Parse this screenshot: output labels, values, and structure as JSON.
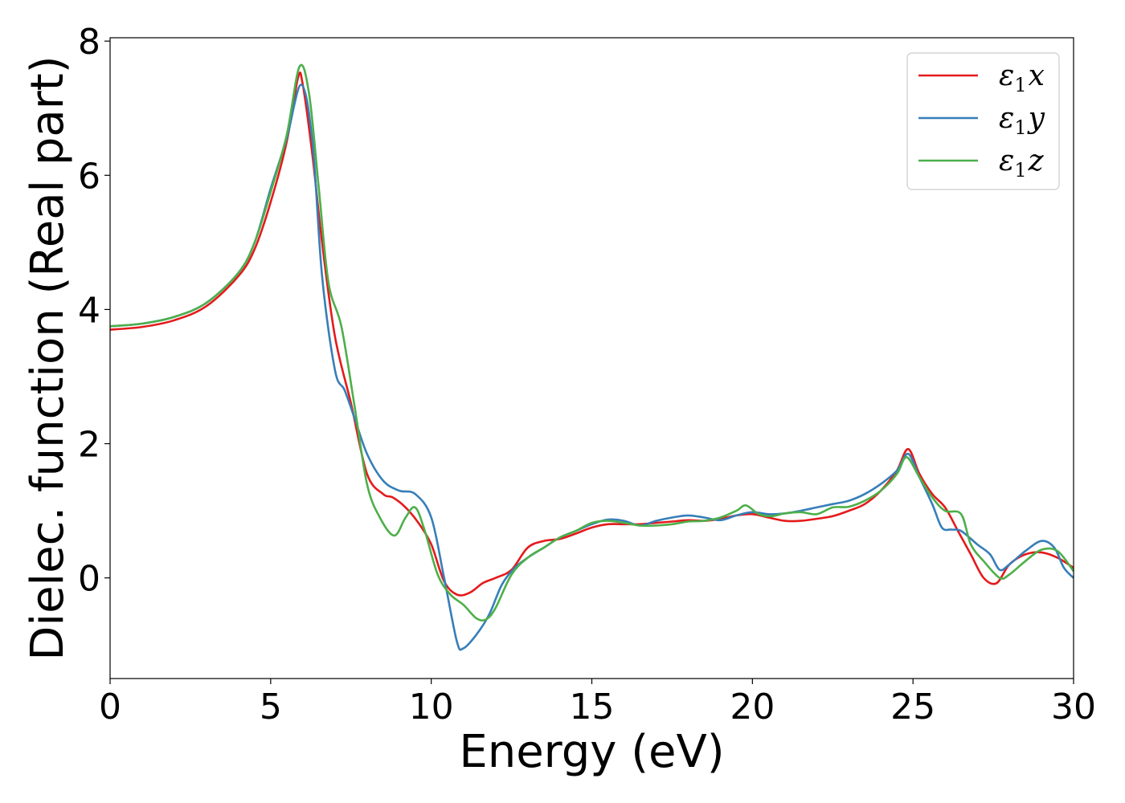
{
  "chart_data": {
    "type": "line",
    "xlabel": "Energy (eV)",
    "ylabel": "Dielec. function (Real part)",
    "xlim": [
      0,
      30
    ],
    "ylim": [
      -1.5,
      8.05
    ],
    "xticks": [
      0,
      5,
      10,
      15,
      20,
      25,
      30
    ],
    "yticks": [
      0,
      2,
      4,
      6,
      8
    ],
    "grid": false,
    "legend_position": "top-right",
    "series": [
      {
        "name": "ε1x",
        "color": "#e41a1c",
        "x": [
          0,
          1,
          2,
          3,
          4,
          4.5,
          5,
          5.5,
          5.85,
          6.0,
          6.3,
          6.6,
          7.0,
          7.5,
          8.0,
          8.5,
          8.8,
          9.2,
          9.6,
          10.0,
          10.4,
          10.8,
          11.2,
          11.6,
          12.0,
          12.5,
          13.0,
          13.5,
          14.0,
          14.5,
          15.0,
          15.5,
          16.0,
          16.5,
          17.0,
          17.5,
          18.0,
          18.5,
          19.0,
          19.5,
          20.0,
          20.5,
          21.0,
          21.5,
          22.0,
          22.5,
          23.0,
          23.5,
          24.0,
          24.5,
          24.85,
          25.2,
          25.6,
          26.0,
          26.4,
          26.8,
          27.2,
          27.6,
          28.0,
          28.5,
          29.0,
          29.5,
          30.0
        ],
        "y": [
          3.7,
          3.74,
          3.84,
          4.05,
          4.5,
          4.9,
          5.6,
          6.5,
          7.45,
          7.35,
          6.3,
          5.0,
          3.6,
          2.6,
          1.55,
          1.25,
          1.2,
          1.05,
          0.82,
          0.5,
          -0.05,
          -0.25,
          -0.22,
          -0.08,
          0.0,
          0.12,
          0.45,
          0.55,
          0.58,
          0.66,
          0.75,
          0.8,
          0.8,
          0.8,
          0.82,
          0.84,
          0.86,
          0.85,
          0.88,
          0.93,
          0.95,
          0.9,
          0.85,
          0.85,
          0.88,
          0.92,
          1.0,
          1.1,
          1.3,
          1.6,
          1.92,
          1.55,
          1.25,
          1.05,
          0.7,
          0.35,
          0.0,
          -0.08,
          0.2,
          0.35,
          0.38,
          0.3,
          0.15
        ]
      },
      {
        "name": "ε1y",
        "color": "#377eb8",
        "x": [
          0,
          1,
          2,
          3,
          4,
          4.5,
          5,
          5.5,
          5.95,
          6.3,
          6.6,
          7.0,
          7.3,
          7.6,
          8.0,
          8.5,
          9.0,
          9.5,
          10.0,
          10.4,
          10.8,
          11.0,
          11.4,
          11.8,
          12.2,
          12.6,
          13.0,
          13.5,
          14.0,
          14.5,
          15.0,
          15.5,
          16.0,
          16.5,
          17.0,
          17.5,
          18.0,
          18.5,
          19.0,
          19.5,
          20.0,
          20.5,
          21.0,
          21.5,
          22.0,
          22.5,
          23.0,
          23.5,
          24.0,
          24.5,
          24.85,
          25.2,
          25.6,
          25.9,
          26.2,
          26.5,
          27.0,
          27.4,
          27.7,
          28.0,
          28.5,
          29.0,
          29.4,
          29.7,
          30.0
        ],
        "y": [
          3.75,
          3.79,
          3.89,
          4.1,
          4.55,
          5.0,
          5.8,
          6.55,
          7.35,
          6.5,
          4.5,
          3.1,
          2.8,
          2.4,
          1.85,
          1.45,
          1.3,
          1.25,
          0.9,
          0.0,
          -0.95,
          -1.05,
          -0.85,
          -0.55,
          -0.1,
          0.15,
          0.3,
          0.45,
          0.6,
          0.7,
          0.8,
          0.87,
          0.85,
          0.78,
          0.85,
          0.9,
          0.93,
          0.9,
          0.86,
          0.93,
          0.98,
          0.95,
          0.96,
          1.0,
          1.05,
          1.1,
          1.15,
          1.25,
          1.4,
          1.6,
          1.85,
          1.5,
          1.1,
          0.75,
          0.72,
          0.7,
          0.5,
          0.35,
          0.12,
          0.2,
          0.4,
          0.55,
          0.45,
          0.15,
          0.0
        ]
      },
      {
        "name": "ε1z",
        "color": "#4daf4a",
        "x": [
          0,
          1,
          2,
          3,
          4,
          4.5,
          5,
          5.5,
          5.9,
          6.2,
          6.5,
          6.8,
          7.2,
          7.6,
          8.0,
          8.4,
          8.85,
          9.2,
          9.5,
          9.8,
          10.2,
          10.6,
          11.0,
          11.4,
          11.7,
          12.0,
          12.5,
          13.0,
          13.5,
          14.0,
          14.5,
          15.0,
          15.5,
          16.0,
          16.5,
          17.0,
          17.5,
          18.0,
          18.5,
          19.0,
          19.5,
          19.8,
          20.2,
          20.6,
          21.0,
          21.5,
          22.0,
          22.5,
          23.0,
          23.5,
          24.0,
          24.5,
          24.8,
          25.2,
          25.6,
          26.0,
          26.5,
          26.8,
          27.2,
          27.7,
          28.0,
          28.5,
          29.0,
          29.5,
          30.0
        ],
        "y": [
          3.75,
          3.79,
          3.89,
          4.1,
          4.55,
          5.0,
          5.75,
          6.6,
          7.62,
          7.2,
          5.8,
          4.4,
          3.75,
          2.6,
          1.4,
          0.9,
          0.63,
          0.9,
          1.05,
          0.7,
          0.05,
          -0.25,
          -0.4,
          -0.6,
          -0.62,
          -0.45,
          0.05,
          0.3,
          0.45,
          0.6,
          0.7,
          0.82,
          0.85,
          0.82,
          0.78,
          0.78,
          0.8,
          0.84,
          0.85,
          0.9,
          1.0,
          1.08,
          0.95,
          0.92,
          0.96,
          0.98,
          0.95,
          1.05,
          1.06,
          1.15,
          1.3,
          1.55,
          1.8,
          1.5,
          1.2,
          1.0,
          0.95,
          0.5,
          0.25,
          0.0,
          0.05,
          0.25,
          0.42,
          0.4,
          0.1
        ]
      }
    ]
  }
}
